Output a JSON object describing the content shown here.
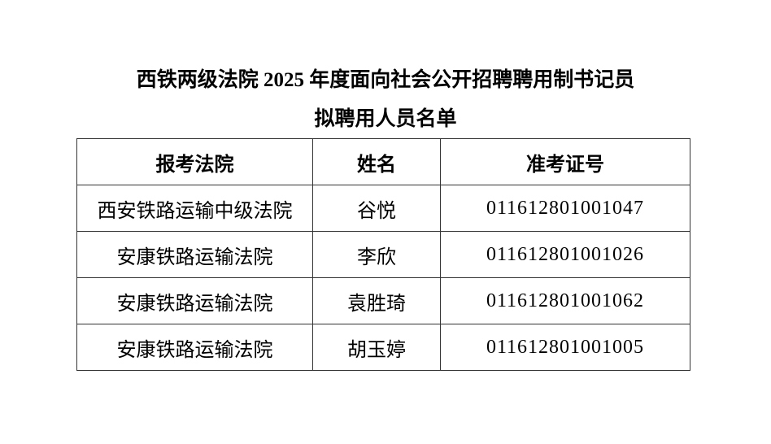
{
  "title": {
    "line1": "西铁两级法院 2025 年度面向社会公开招聘聘用制书记员",
    "line2": "拟聘用人员名单"
  },
  "table": {
    "headers": [
      "报考法院",
      "姓名",
      "准考证号"
    ],
    "rows": [
      {
        "court": "西安铁路运输中级法院",
        "name": "谷悦",
        "ticket": "011612801001047"
      },
      {
        "court": "安康铁路运输法院",
        "name": "李欣",
        "ticket": "011612801001026"
      },
      {
        "court": "安康铁路运输法院",
        "name": "袁胜琦",
        "ticket": "011612801001062"
      },
      {
        "court": "安康铁路运输法院",
        "name": "胡玉婷",
        "ticket": "011612801001005"
      }
    ]
  }
}
